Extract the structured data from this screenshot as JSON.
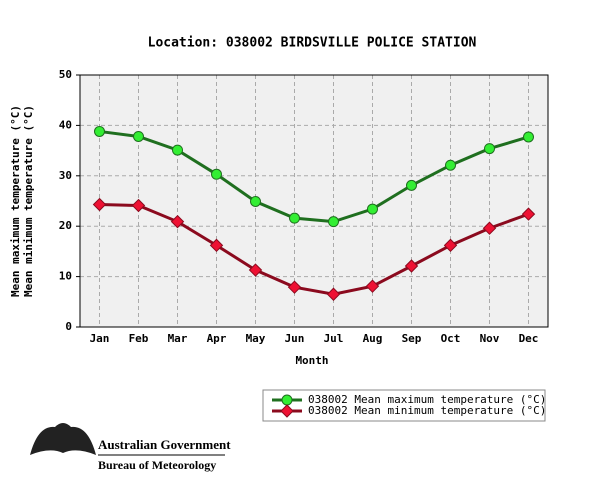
{
  "chart_data": {
    "type": "line",
    "title": "Location: 038002 BIRDSVILLE POLICE STATION",
    "xlabel": "Month",
    "ylabel": [
      "Mean maximum temperature (°C)",
      "Mean minimum temperature (°C)"
    ],
    "categories": [
      "Jan",
      "Feb",
      "Mar",
      "Apr",
      "May",
      "Jun",
      "Jul",
      "Aug",
      "Sep",
      "Oct",
      "Nov",
      "Dec"
    ],
    "series": [
      {
        "name": "038002 Mean maximum temperature (°C)",
        "color": "#1f6f1f",
        "marker_color": "#33ee33",
        "marker": "circle",
        "values": [
          38.8,
          37.8,
          35.1,
          30.3,
          24.9,
          21.6,
          20.9,
          23.4,
          28.1,
          32.1,
          35.4,
          37.7
        ]
      },
      {
        "name": "038002 Mean minimum temperature (°C)",
        "color": "#8b0a1e",
        "marker_color": "#ee1133",
        "marker": "diamond",
        "values": [
          24.3,
          24.1,
          20.9,
          16.2,
          11.3,
          7.9,
          6.5,
          8.1,
          12.1,
          16.2,
          19.6,
          22.4
        ]
      }
    ],
    "ylim": [
      0,
      50
    ],
    "yticks": [
      0,
      10,
      20,
      30,
      40,
      50
    ],
    "grid": true
  },
  "logo": {
    "line1": "Australian Government",
    "line2": "Bureau of Meteorology"
  }
}
